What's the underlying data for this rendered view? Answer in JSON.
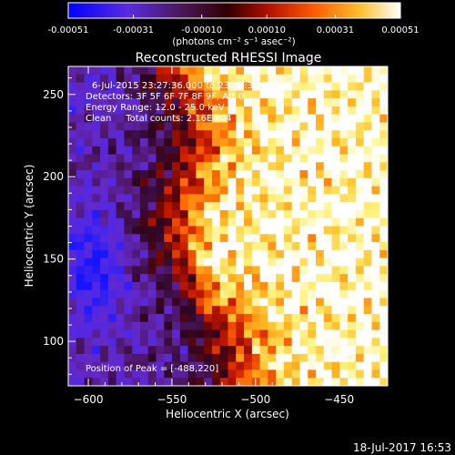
{
  "chart_data": {
    "type": "heatmap",
    "title": "Reconstructed RHESSI Image",
    "xlabel": "Heliocentric X (arcsec)",
    "ylabel": "Heliocentric Y (arcsec)",
    "xlim": [
      -612,
      -421
    ],
    "ylim": [
      73,
      267
    ],
    "x_ticks": [
      -600,
      -550,
      -500,
      -450
    ],
    "y_ticks": [
      100,
      150,
      200,
      250
    ],
    "colorbar": {
      "ticks": [
        "-0.00051",
        "-0.00031",
        "-0.00010",
        "0.00010",
        "0.00031",
        "0.00051"
      ],
      "tick_values": [
        -0.00051,
        -0.00031,
        -0.0001,
        0.0001,
        0.00031,
        0.00051
      ],
      "range": [
        -0.00051,
        0.00051
      ],
      "unit": "(photons cm⁻² s⁻¹ asec⁻²)",
      "colors": [
        "#1a1aff",
        "#6a2fd6",
        "#6b1a5a",
        "#c01a00",
        "#ff7a00",
        "#ffd64a",
        "#ffffff"
      ]
    },
    "annotations": [
      "6-Jul-2015 23:27:36.000 to 23:37:36.000",
      "Detectors: 3F 5F 6F 7F 8F 9F, Att 0",
      "Energy Range: 12.0 - 25.0 keV",
      "Clean     Total counts: 2.16E+04"
    ],
    "peak_text": "Position of Peak = [-488,220]",
    "peak": {
      "x": -488,
      "y": 220
    }
  },
  "footer": {
    "timestamp": "18-Jul-2017 16:53"
  }
}
